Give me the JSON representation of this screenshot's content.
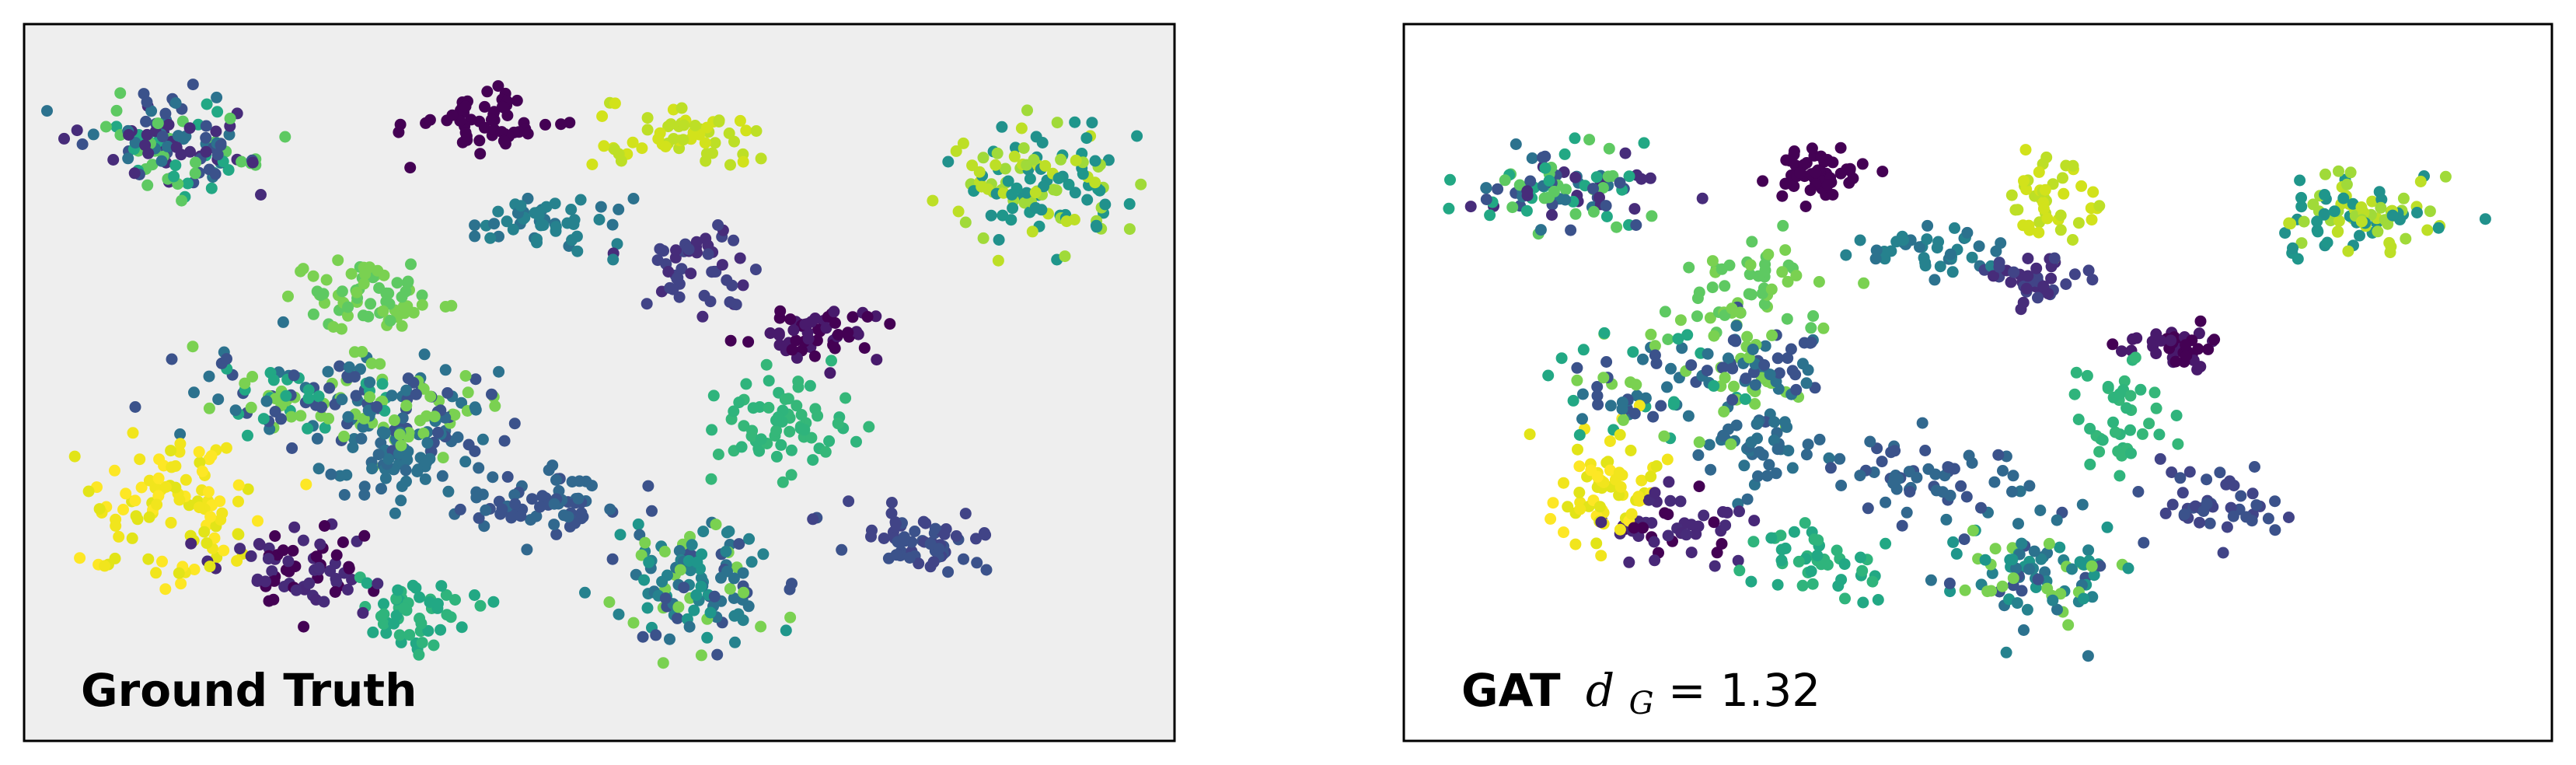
{
  "chart_data": [
    {
      "type": "scatter",
      "title_bold": "Ground Truth",
      "title_math": "",
      "background": "#eeeeee",
      "xlim": [
        0,
        100
      ],
      "ylim": [
        0,
        100
      ],
      "grid": false,
      "legend": "none",
      "colormap": "viridis",
      "clusters": [
        {
          "x": 13,
          "y": 83,
          "sx": 3.5,
          "sy": 3.5,
          "n": 130,
          "colors": [
            "#472c7a",
            "#2c728e",
            "#22a884",
            "#3b528b",
            "#5ec962"
          ]
        },
        {
          "x": 40,
          "y": 86,
          "sx": 3.3,
          "sy": 2.1,
          "n": 55,
          "colors": [
            "#440154"
          ]
        },
        {
          "x": 57,
          "y": 84,
          "sx": 3.3,
          "sy": 2.3,
          "n": 55,
          "colors": [
            "#d2e21b",
            "#bddf26"
          ]
        },
        {
          "x": 88,
          "y": 77,
          "sx": 4.0,
          "sy": 4.3,
          "n": 120,
          "colors": [
            "#bddf26",
            "#a0da39",
            "#1f968b",
            "#21918c"
          ]
        },
        {
          "x": 46,
          "y": 72,
          "sx": 3.2,
          "sy": 2.2,
          "n": 50,
          "colors": [
            "#2c728e",
            "#26828e"
          ]
        },
        {
          "x": 58,
          "y": 66,
          "sx": 2.8,
          "sy": 2.8,
          "n": 50,
          "colors": [
            "#414487",
            "#472c7a"
          ]
        },
        {
          "x": 69,
          "y": 57,
          "sx": 3.0,
          "sy": 2.2,
          "n": 55,
          "colors": [
            "#440154",
            "#481a6c"
          ]
        },
        {
          "x": 30,
          "y": 62,
          "sx": 3.5,
          "sy": 2.8,
          "n": 70,
          "colors": [
            "#7ad151",
            "#5ec962"
          ]
        },
        {
          "x": 24,
          "y": 48,
          "sx": 4.5,
          "sy": 3.2,
          "n": 100,
          "colors": [
            "#22a884",
            "#2c728e",
            "#3b528b",
            "#7ad151"
          ]
        },
        {
          "x": 34,
          "y": 46,
          "sx": 3.5,
          "sy": 3.5,
          "n": 90,
          "colors": [
            "#3b528b",
            "#7ad151",
            "#2c728e"
          ]
        },
        {
          "x": 33,
          "y": 39,
          "sx": 2.5,
          "sy": 3.0,
          "n": 60,
          "colors": [
            "#2c728e",
            "#31688e"
          ]
        },
        {
          "x": 66,
          "y": 44,
          "sx": 3.0,
          "sy": 3.5,
          "n": 65,
          "colors": [
            "#35b779",
            "#2fb47c"
          ]
        },
        {
          "x": 45,
          "y": 33,
          "sx": 3.5,
          "sy": 2.8,
          "n": 70,
          "colors": [
            "#3b528b",
            "#31688e"
          ]
        },
        {
          "x": 14,
          "y": 32,
          "sx": 4.5,
          "sy": 5.0,
          "n": 100,
          "colors": [
            "#fde725",
            "#f1e51d",
            "#e2e418"
          ]
        },
        {
          "x": 24,
          "y": 24,
          "sx": 3.5,
          "sy": 3.0,
          "n": 70,
          "colors": [
            "#440154",
            "#472c7a",
            "#482878"
          ]
        },
        {
          "x": 34,
          "y": 18,
          "sx": 3.0,
          "sy": 3.0,
          "n": 55,
          "colors": [
            "#22a884",
            "#2fb47c"
          ]
        },
        {
          "x": 58,
          "y": 22,
          "sx": 3.5,
          "sy": 4.5,
          "n": 120,
          "colors": [
            "#26828e",
            "#7ad151",
            "#2c728e",
            "#1f968b",
            "#3b528b"
          ]
        },
        {
          "x": 77,
          "y": 28,
          "sx": 3.0,
          "sy": 2.3,
          "n": 60,
          "colors": [
            "#414487",
            "#3b528b"
          ]
        }
      ]
    },
    {
      "type": "scatter",
      "title_bold": "GAT",
      "title_math": "d",
      "title_sub": "G",
      "title_value": " = 1.32",
      "background": "#ffffff",
      "xlim": [
        0,
        100
      ],
      "ylim": [
        0,
        100
      ],
      "grid": false,
      "legend": "none",
      "colormap": "viridis",
      "clusters": [
        {
          "x": 14,
          "y": 77,
          "sx": 4.5,
          "sy": 3.0,
          "n": 95,
          "colors": [
            "#472c7a",
            "#2c728e",
            "#22a884",
            "#3b528b",
            "#5ec962"
          ]
        },
        {
          "x": 36,
          "y": 79,
          "sx": 2.4,
          "sy": 1.8,
          "n": 50,
          "colors": [
            "#440154"
          ]
        },
        {
          "x": 56,
          "y": 76,
          "sx": 1.8,
          "sy": 3.5,
          "n": 45,
          "colors": [
            "#d2e21b",
            "#bddf26"
          ]
        },
        {
          "x": 83,
          "y": 73,
          "sx": 3.5,
          "sy": 3.0,
          "n": 90,
          "colors": [
            "#bddf26",
            "#a0da39",
            "#1f968b",
            "#21918c"
          ]
        },
        {
          "x": 46,
          "y": 68,
          "sx": 2.8,
          "sy": 1.8,
          "n": 40,
          "colors": [
            "#2c728e",
            "#26828e"
          ]
        },
        {
          "x": 55,
          "y": 64,
          "sx": 3.0,
          "sy": 1.8,
          "n": 40,
          "colors": [
            "#414487",
            "#472c7a"
          ]
        },
        {
          "x": 67,
          "y": 55,
          "sx": 2.5,
          "sy": 1.5,
          "n": 40,
          "colors": [
            "#440154",
            "#481a6c"
          ]
        },
        {
          "x": 31,
          "y": 63,
          "sx": 2.8,
          "sy": 3.5,
          "n": 55,
          "colors": [
            "#7ad151",
            "#5ec962"
          ]
        },
        {
          "x": 22,
          "y": 50,
          "sx": 4.5,
          "sy": 3.5,
          "n": 75,
          "colors": [
            "#22a884",
            "#2c728e",
            "#3b528b",
            "#7ad151"
          ]
        },
        {
          "x": 31,
          "y": 52,
          "sx": 2.5,
          "sy": 3.5,
          "n": 60,
          "colors": [
            "#3b528b",
            "#7ad151",
            "#2c728e"
          ]
        },
        {
          "x": 31,
          "y": 41,
          "sx": 2.5,
          "sy": 3.5,
          "n": 45,
          "colors": [
            "#2c728e",
            "#31688e"
          ]
        },
        {
          "x": 63,
          "y": 46,
          "sx": 2.0,
          "sy": 4.0,
          "n": 40,
          "colors": [
            "#35b779",
            "#2fb47c"
          ]
        },
        {
          "x": 45,
          "y": 36,
          "sx": 4.5,
          "sy": 2.5,
          "n": 55,
          "colors": [
            "#3b528b",
            "#31688e"
          ]
        },
        {
          "x": 18,
          "y": 35,
          "sx": 2.5,
          "sy": 4.0,
          "n": 65,
          "colors": [
            "#fde725",
            "#f1e51d",
            "#e2e418"
          ]
        },
        {
          "x": 23,
          "y": 30,
          "sx": 3.0,
          "sy": 2.5,
          "n": 50,
          "colors": [
            "#440154",
            "#472c7a",
            "#482878"
          ]
        },
        {
          "x": 36,
          "y": 25,
          "sx": 2.5,
          "sy": 2.5,
          "n": 45,
          "colors": [
            "#22a884",
            "#2fb47c"
          ]
        },
        {
          "x": 55,
          "y": 24,
          "sx": 3.5,
          "sy": 4.0,
          "n": 95,
          "colors": [
            "#26828e",
            "#7ad151",
            "#2c728e",
            "#1f968b",
            "#3b528b"
          ]
        },
        {
          "x": 70,
          "y": 33,
          "sx": 3.5,
          "sy": 2.5,
          "n": 45,
          "colors": [
            "#414487",
            "#3b528b"
          ]
        }
      ]
    }
  ]
}
